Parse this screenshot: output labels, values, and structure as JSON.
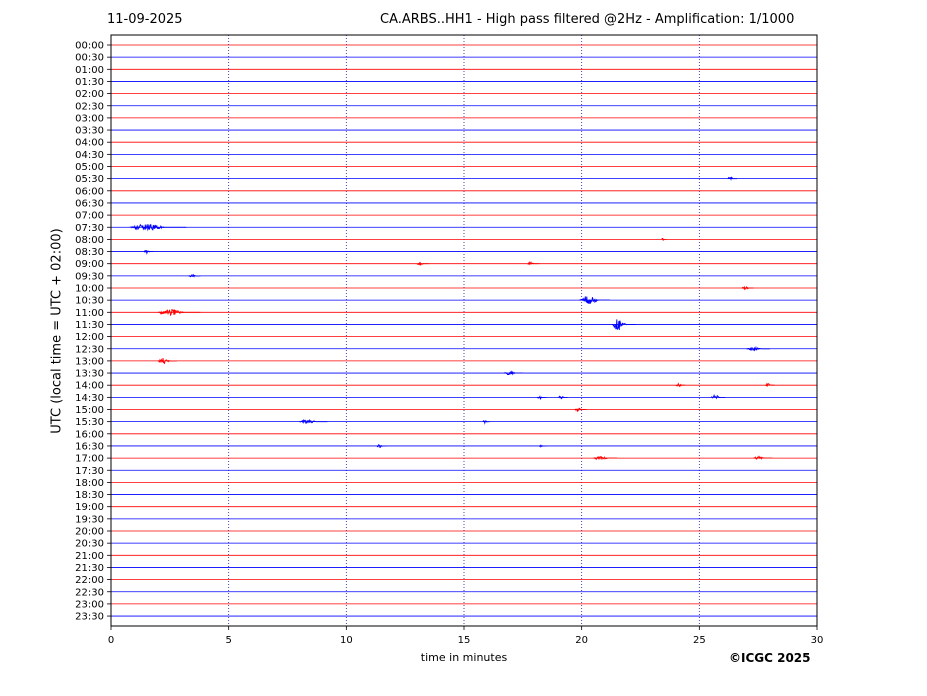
{
  "header": {
    "date": "11-09-2025",
    "title": "CA.ARBS..HH1 - High pass filtered @2Hz - Amplification: 1/1000"
  },
  "footer": {
    "copyright": "©ICGC 2025"
  },
  "chart_data": {
    "type": "line",
    "title": "CA.ARBS..HH1 - High pass filtered @2Hz - Amplification: 1/1000",
    "xlabel": "time in minutes",
    "ylabel": "UTC (local time = UTC + 02:00)",
    "xlim": [
      0,
      30
    ],
    "xticks": [
      0,
      5,
      10,
      15,
      20,
      25,
      30
    ],
    "grid": "vertical dotted at 5-minute intervals",
    "rows": [
      "00:00",
      "00:30",
      "01:00",
      "01:30",
      "02:00",
      "02:30",
      "03:00",
      "03:30",
      "04:00",
      "04:30",
      "05:00",
      "05:30",
      "06:00",
      "06:30",
      "07:00",
      "07:30",
      "08:00",
      "08:30",
      "09:00",
      "09:30",
      "10:00",
      "10:30",
      "11:00",
      "11:30",
      "12:00",
      "12:30",
      "13:00",
      "13:30",
      "14:00",
      "14:30",
      "15:00",
      "15:30",
      "16:00",
      "16:30",
      "17:00",
      "17:30",
      "18:00",
      "18:30",
      "19:00",
      "19:30",
      "20:00",
      "20:30",
      "21:00",
      "21:30",
      "22:00",
      "22:30",
      "23:00",
      "23:30"
    ],
    "row_colors": [
      "#ff0000",
      "#0000ff"
    ],
    "events": [
      {
        "row": "05:30",
        "minute": 26.2,
        "duration": 0.4,
        "amplitude": 2
      },
      {
        "row": "07:30",
        "minute": 0.8,
        "duration": 2.4,
        "amplitude": 4
      },
      {
        "row": "08:00",
        "minute": 23.4,
        "duration": 0.2,
        "amplitude": 2
      },
      {
        "row": "08:30",
        "minute": 1.4,
        "duration": 0.4,
        "amplitude": 2
      },
      {
        "row": "09:00",
        "minute": 13.0,
        "duration": 0.5,
        "amplitude": 2
      },
      {
        "row": "09:00",
        "minute": 17.7,
        "duration": 0.5,
        "amplitude": 2
      },
      {
        "row": "09:30",
        "minute": 3.3,
        "duration": 0.5,
        "amplitude": 2
      },
      {
        "row": "10:00",
        "minute": 26.8,
        "duration": 0.5,
        "amplitude": 2
      },
      {
        "row": "10:30",
        "minute": 19.9,
        "duration": 1.3,
        "amplitude": 5
      },
      {
        "row": "11:00",
        "minute": 2.0,
        "duration": 1.8,
        "amplitude": 4
      },
      {
        "row": "11:30",
        "minute": 21.3,
        "duration": 1.0,
        "amplitude": 7
      },
      {
        "row": "12:30",
        "minute": 27.0,
        "duration": 1.0,
        "amplitude": 2
      },
      {
        "row": "13:00",
        "minute": 2.0,
        "duration": 0.8,
        "amplitude": 4
      },
      {
        "row": "13:30",
        "minute": 16.7,
        "duration": 0.8,
        "amplitude": 2
      },
      {
        "row": "14:00",
        "minute": 24.0,
        "duration": 0.4,
        "amplitude": 2
      },
      {
        "row": "14:00",
        "minute": 27.8,
        "duration": 0.4,
        "amplitude": 2
      },
      {
        "row": "14:30",
        "minute": 18.1,
        "duration": 0.4,
        "amplitude": 2
      },
      {
        "row": "14:30",
        "minute": 19.0,
        "duration": 0.4,
        "amplitude": 2
      },
      {
        "row": "14:30",
        "minute": 25.5,
        "duration": 0.6,
        "amplitude": 3
      },
      {
        "row": "15:00",
        "minute": 19.7,
        "duration": 0.5,
        "amplitude": 2
      },
      {
        "row": "15:30",
        "minute": 8.0,
        "duration": 1.2,
        "amplitude": 2
      },
      {
        "row": "15:30",
        "minute": 15.8,
        "duration": 0.3,
        "amplitude": 2
      },
      {
        "row": "16:30",
        "minute": 11.3,
        "duration": 0.4,
        "amplitude": 2
      },
      {
        "row": "16:30",
        "minute": 18.2,
        "duration": 0.3,
        "amplitude": 1
      },
      {
        "row": "17:00",
        "minute": 20.5,
        "duration": 1.0,
        "amplitude": 2
      },
      {
        "row": "17:00",
        "minute": 27.3,
        "duration": 0.8,
        "amplitude": 2
      }
    ]
  }
}
